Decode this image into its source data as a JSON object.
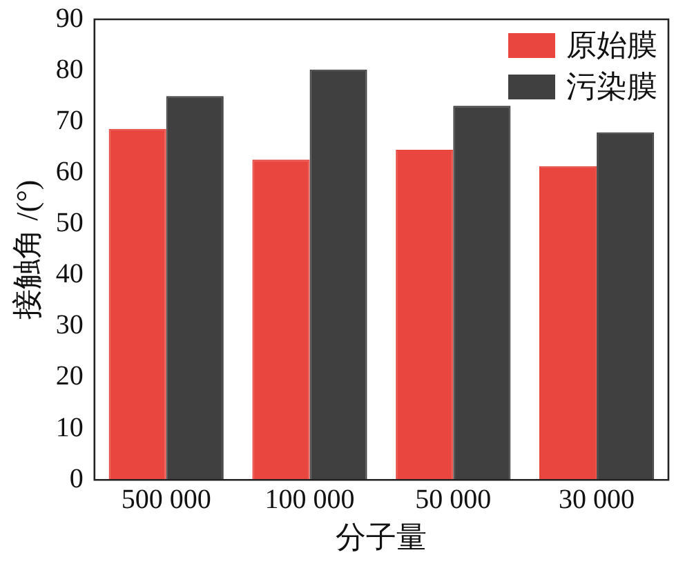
{
  "chart_data": {
    "type": "bar",
    "xlabel": "分子量",
    "ylabel": "接触角 /(°)",
    "categories": [
      "500 000",
      "100 000",
      "50 000",
      "30 000"
    ],
    "series": [
      {
        "name": "原始膜",
        "color": "#e8463e",
        "values": [
          68.6,
          62.6,
          64.5,
          61.3
        ]
      },
      {
        "name": "污染膜",
        "color": "#404040",
        "values": [
          75.0,
          80.2,
          73.1,
          67.9
        ]
      }
    ],
    "ylim": [
      0,
      90
    ],
    "yticks": [
      0,
      10,
      20,
      30,
      40,
      50,
      60,
      70,
      80,
      90
    ],
    "grid": false,
    "legend": "top right"
  }
}
